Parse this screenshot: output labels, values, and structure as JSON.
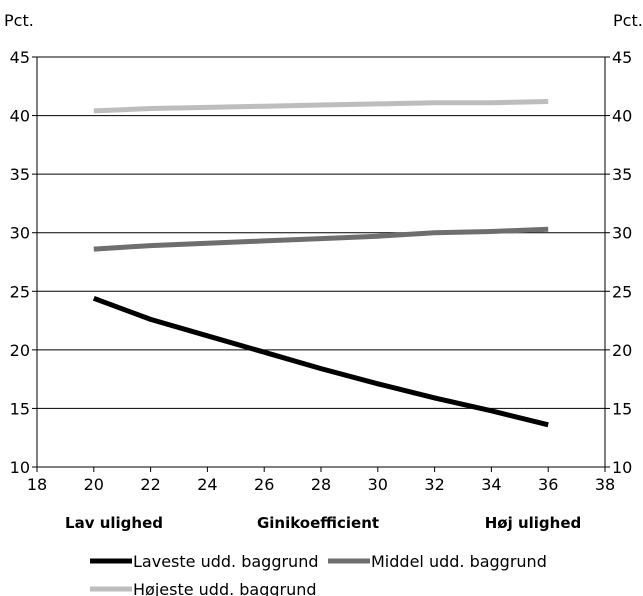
{
  "chart_data": {
    "type": "line",
    "left_unit": "Pct.",
    "right_unit": "Pct.",
    "xlim": [
      18,
      38
    ],
    "ylim": [
      10,
      45
    ],
    "x_ticks": [
      "18",
      "20",
      "22",
      "24",
      "26",
      "28",
      "30",
      "32",
      "34",
      "36",
      "38"
    ],
    "y_ticks": [
      "10",
      "15",
      "20",
      "25",
      "30",
      "35",
      "40",
      "45"
    ],
    "grid": "horizontal",
    "x_annotations": [
      {
        "label": "Lav ulighed",
        "x": 20
      },
      {
        "label": "Ginikoefficient",
        "x": 28
      },
      {
        "label": "Høj ulighed",
        "x": 36
      }
    ],
    "x": [
      20,
      22,
      24,
      26,
      28,
      30,
      32,
      34,
      36
    ],
    "series": [
      {
        "name": "Laveste udd. baggrund",
        "color": "#000000",
        "values": [
          24.4,
          22.6,
          21.2,
          19.8,
          18.4,
          17.1,
          15.9,
          14.8,
          13.6
        ]
      },
      {
        "name": "Middel udd. baggrund",
        "color": "#6e6e6e",
        "values": [
          28.6,
          28.9,
          29.1,
          29.3,
          29.5,
          29.7,
          30.0,
          30.1,
          30.3
        ]
      },
      {
        "name": "Højeste udd. baggrund",
        "color": "#bdbdbd",
        "values": [
          40.4,
          40.6,
          40.7,
          40.8,
          40.9,
          41.0,
          41.1,
          41.1,
          41.2
        ]
      }
    ],
    "legend_position": "bottom"
  }
}
